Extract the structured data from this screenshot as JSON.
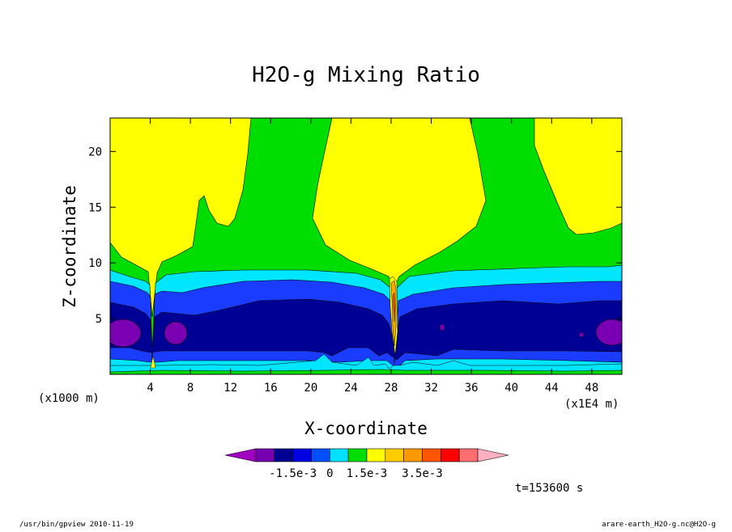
{
  "chart_data": {
    "type": "heatmap",
    "title": "H2O-g Mixing Ratio",
    "xlabel": "X-coordinate",
    "ylabel": "Z-coordinate",
    "x_unit_label": "(x1E4 m)",
    "y_unit_label": "(x1000 m)",
    "xlim": [
      0,
      51
    ],
    "ylim": [
      0,
      23
    ],
    "x_ticks": [
      "4",
      "8",
      "12",
      "16",
      "20",
      "24",
      "28",
      "32",
      "36",
      "40",
      "44",
      "48"
    ],
    "y_ticks": [
      "5",
      "10",
      "15",
      "20"
    ],
    "colorbar": {
      "colors": [
        "#a000c0",
        "#7700b0",
        "#000090",
        "#0000e0",
        "#0050ff",
        "#00e0ff",
        "#00dd00",
        "#ffff00",
        "#ffcc00",
        "#ff9900",
        "#ff5500",
        "#ff0000",
        "#ff6f6f",
        "#ffb0c0"
      ],
      "labels": [
        "-1.5e-3",
        "0",
        "1.5e-3",
        "3.5e-3"
      ]
    },
    "time_label": "t=153600 s",
    "program_label": "/usr/bin/gpview  2010-11-19",
    "file_label": "arare-earth_H2O-g.nc@H2O-g",
    "grid": false
  }
}
